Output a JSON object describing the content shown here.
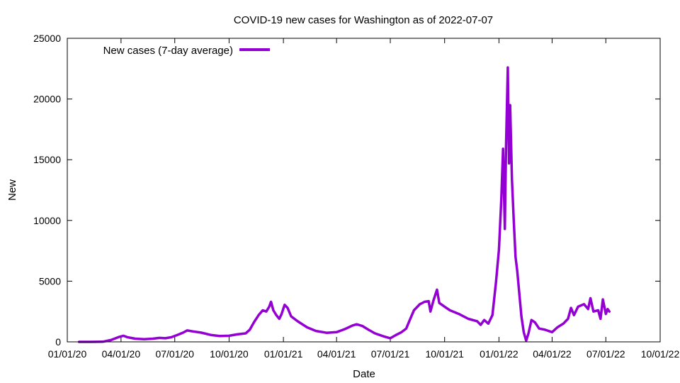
{
  "chart_data": {
    "type": "line",
    "title": "COVID-19 new cases for Washington as of 2022-07-07",
    "xlabel": "Date",
    "ylabel": "New",
    "xlim": [
      "2020-01-01",
      "2022-10-01"
    ],
    "ylim": [
      0,
      25000
    ],
    "x_ticks": [
      "01/01/20",
      "04/01/20",
      "07/01/20",
      "10/01/20",
      "01/01/21",
      "04/01/21",
      "07/01/21",
      "10/01/21",
      "01/01/22",
      "04/01/22",
      "07/01/22",
      "10/01/22"
    ],
    "x_tick_dates": [
      "2020-01-01",
      "2020-04-01",
      "2020-07-01",
      "2020-10-01",
      "2021-01-01",
      "2021-04-01",
      "2021-07-01",
      "2021-10-01",
      "2022-01-01",
      "2022-04-01",
      "2022-07-01",
      "2022-10-01"
    ],
    "y_ticks": [
      "0",
      "5000",
      "10000",
      "15000",
      "20000",
      "25000"
    ],
    "y_tick_values": [
      0,
      5000,
      10000,
      15000,
      20000,
      25000
    ],
    "grid": false,
    "legend_position": "top-left",
    "series": [
      {
        "name": "New cases (7-day average)",
        "color": "#9400d3",
        "points": [
          [
            "2020-01-21",
            0
          ],
          [
            "2020-02-10",
            0
          ],
          [
            "2020-03-01",
            10
          ],
          [
            "2020-03-15",
            150
          ],
          [
            "2020-03-28",
            400
          ],
          [
            "2020-04-05",
            500
          ],
          [
            "2020-04-12",
            380
          ],
          [
            "2020-04-25",
            260
          ],
          [
            "2020-05-10",
            220
          ],
          [
            "2020-05-25",
            260
          ],
          [
            "2020-06-05",
            330
          ],
          [
            "2020-06-15",
            300
          ],
          [
            "2020-06-25",
            380
          ],
          [
            "2020-07-05",
            560
          ],
          [
            "2020-07-15",
            760
          ],
          [
            "2020-07-22",
            940
          ],
          [
            "2020-08-01",
            860
          ],
          [
            "2020-08-15",
            760
          ],
          [
            "2020-09-01",
            560
          ],
          [
            "2020-09-15",
            480
          ],
          [
            "2020-10-01",
            500
          ],
          [
            "2020-10-15",
            620
          ],
          [
            "2020-10-29",
            700
          ],
          [
            "2020-11-05",
            1000
          ],
          [
            "2020-11-12",
            1600
          ],
          [
            "2020-11-20",
            2200
          ],
          [
            "2020-11-27",
            2600
          ],
          [
            "2020-12-03",
            2500
          ],
          [
            "2020-12-08",
            2900
          ],
          [
            "2020-12-11",
            3300
          ],
          [
            "2020-12-15",
            2600
          ],
          [
            "2020-12-20",
            2200
          ],
          [
            "2020-12-25",
            1900
          ],
          [
            "2020-12-29",
            2300
          ],
          [
            "2021-01-03",
            3050
          ],
          [
            "2021-01-08",
            2800
          ],
          [
            "2021-01-14",
            2100
          ],
          [
            "2021-01-25",
            1700
          ],
          [
            "2021-02-10",
            1200
          ],
          [
            "2021-02-25",
            900
          ],
          [
            "2021-03-15",
            750
          ],
          [
            "2021-04-01",
            800
          ],
          [
            "2021-04-15",
            1050
          ],
          [
            "2021-04-28",
            1350
          ],
          [
            "2021-05-05",
            1450
          ],
          [
            "2021-05-15",
            1300
          ],
          [
            "2021-05-25",
            1000
          ],
          [
            "2021-06-05",
            700
          ],
          [
            "2021-06-20",
            450
          ],
          [
            "2021-07-01",
            300
          ],
          [
            "2021-07-10",
            550
          ],
          [
            "2021-07-20",
            800
          ],
          [
            "2021-07-28",
            1100
          ],
          [
            "2021-08-03",
            1800
          ],
          [
            "2021-08-10",
            2600
          ],
          [
            "2021-08-20",
            3100
          ],
          [
            "2021-08-28",
            3300
          ],
          [
            "2021-09-04",
            3350
          ],
          [
            "2021-09-07",
            2500
          ],
          [
            "2021-09-12",
            3400
          ],
          [
            "2021-09-18",
            4300
          ],
          [
            "2021-09-22",
            3200
          ],
          [
            "2021-10-01",
            2900
          ],
          [
            "2021-10-10",
            2600
          ],
          [
            "2021-10-25",
            2300
          ],
          [
            "2021-11-10",
            1900
          ],
          [
            "2021-11-25",
            1700
          ],
          [
            "2021-12-01",
            1400
          ],
          [
            "2021-12-07",
            1800
          ],
          [
            "2021-12-14",
            1500
          ],
          [
            "2021-12-21",
            2200
          ],
          [
            "2021-12-27",
            4900
          ],
          [
            "2022-01-01",
            7600
          ],
          [
            "2022-01-05",
            11700
          ],
          [
            "2022-01-08",
            15900
          ],
          [
            "2022-01-11",
            9300
          ],
          [
            "2022-01-13",
            16100
          ],
          [
            "2022-01-16",
            22600
          ],
          [
            "2022-01-18",
            14700
          ],
          [
            "2022-01-20",
            19500
          ],
          [
            "2022-01-23",
            13300
          ],
          [
            "2022-01-26",
            10000
          ],
          [
            "2022-01-29",
            7000
          ],
          [
            "2022-02-01",
            5800
          ],
          [
            "2022-02-04",
            4200
          ],
          [
            "2022-02-08",
            2100
          ],
          [
            "2022-02-12",
            800
          ],
          [
            "2022-02-16",
            100
          ],
          [
            "2022-02-20",
            700
          ],
          [
            "2022-02-25",
            1800
          ],
          [
            "2022-03-03",
            1600
          ],
          [
            "2022-03-10",
            1100
          ],
          [
            "2022-03-20",
            1000
          ],
          [
            "2022-04-01",
            800
          ],
          [
            "2022-04-10",
            1200
          ],
          [
            "2022-04-20",
            1500
          ],
          [
            "2022-04-28",
            1900
          ],
          [
            "2022-05-03",
            2800
          ],
          [
            "2022-05-08",
            2200
          ],
          [
            "2022-05-15",
            2900
          ],
          [
            "2022-05-25",
            3100
          ],
          [
            "2022-06-01",
            2700
          ],
          [
            "2022-06-05",
            3600
          ],
          [
            "2022-06-10",
            2500
          ],
          [
            "2022-06-18",
            2600
          ],
          [
            "2022-06-22",
            1900
          ],
          [
            "2022-06-26",
            3500
          ],
          [
            "2022-07-01",
            2300
          ],
          [
            "2022-07-04",
            2700
          ],
          [
            "2022-07-07",
            2500
          ]
        ]
      }
    ]
  }
}
